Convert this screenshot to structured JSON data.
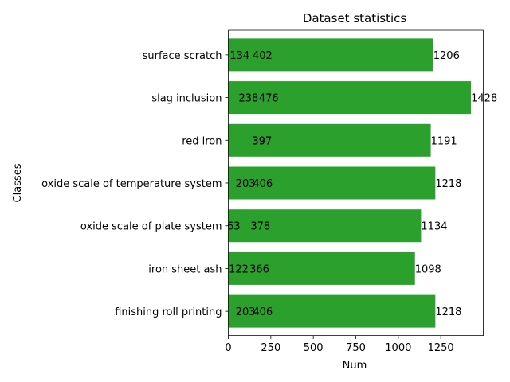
{
  "chart_data": {
    "type": "bar",
    "orientation": "horizontal",
    "title": "Dataset statistics",
    "xlabel": "Num",
    "ylabel": "Classes",
    "xlim": [
      0,
      1500
    ],
    "xticks": [
      0,
      250,
      500,
      750,
      1000,
      1250
    ],
    "bar_color": "#2ca02c",
    "categories": [
      "finishing roll printing",
      "iron sheet ash",
      "oxide scale of plate system",
      "oxide scale of temperature system",
      "red iron",
      "slag inclusion",
      "surface scratch"
    ],
    "series": [
      {
        "values": [
          1218,
          1098,
          1134,
          1218,
          1191,
          1428,
          1206
        ]
      },
      {
        "values": [
          406,
          366,
          378,
          406,
          397,
          476,
          402
        ]
      },
      {
        "values": [
          203,
          122,
          63,
          203,
          397,
          238,
          134
        ]
      }
    ]
  }
}
